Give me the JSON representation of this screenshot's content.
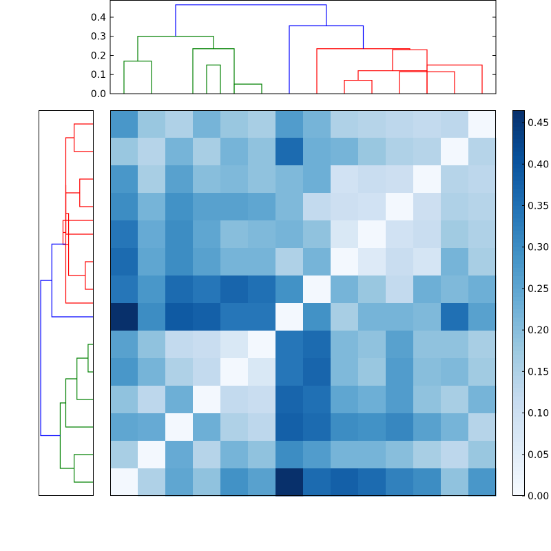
{
  "colors": {
    "cluster_a": "#ff0000",
    "cluster_b": "#008000",
    "root": "#0000ff",
    "frame": "#000000",
    "colormap": [
      "#f7fbff",
      "#deebf7",
      "#c6dbef",
      "#9ecae1",
      "#6baed6",
      "#4292c6",
      "#2171b5",
      "#08519c",
      "#08306b"
    ]
  },
  "chart_data": [
    {
      "type": "dendrogram",
      "orientation": "top",
      "ylim": [
        0,
        0.49
      ],
      "yticks": [
        "0.0",
        "0.1",
        "0.2",
        "0.3",
        "0.4"
      ],
      "ytick_values": [
        0,
        0.1,
        0.2,
        0.3,
        0.4
      ],
      "leaf_count": 14,
      "links": [
        {
          "x": [
            0,
            1
          ],
          "height": 0.17,
          "color": "cluster_b"
        },
        {
          "x": [
            4,
            5
          ],
          "height": 0.05,
          "color": "cluster_b"
        },
        {
          "x": [
            3.5,
            3
          ],
          "height": 0.15,
          "color": "cluster_b"
        },
        {
          "x": [
            2.5,
            4
          ],
          "height": 0.235,
          "color": "cluster_b"
        },
        {
          "x": [
            0.5,
            3.25
          ],
          "height": 0.3,
          "color": "cluster_b"
        },
        {
          "x": [
            8,
            9
          ],
          "height": 0.07,
          "color": "cluster_a"
        },
        {
          "x": [
            8.5,
            11
          ],
          "height": 0.12,
          "color": "cluster_a"
        },
        {
          "x": [
            10,
            12
          ],
          "height": 0.115,
          "color": "cluster_a"
        },
        {
          "x": [
            11,
            13
          ],
          "height": 0.15,
          "color": "cluster_a"
        },
        {
          "x": [
            9.75,
            11
          ],
          "height": 0.23,
          "color": "cluster_a"
        },
        {
          "x": [
            7,
            10.375
          ],
          "height": 0.235,
          "color": "cluster_a"
        },
        {
          "x": [
            6,
            8.6875
          ],
          "height": 0.355,
          "color": "root"
        },
        {
          "x": [
            1.875,
            7.34375
          ],
          "height": 0.465,
          "color": "root"
        }
      ]
    },
    {
      "type": "dendrogram",
      "orientation": "left",
      "leaf_count": 14,
      "links": [
        {
          "y": [
            0,
            1
          ],
          "height": 0.035,
          "color": "cluster_a"
        },
        {
          "y": [
            2,
            3
          ],
          "height": 0.025,
          "color": "cluster_a"
        },
        {
          "y": [
            2.5,
            4
          ],
          "height": 0.05,
          "color": "cluster_a"
        },
        {
          "y": [
            5,
            6
          ],
          "height": 0.015,
          "color": "cluster_a"
        },
        {
          "y": [
            3.25,
            5.5
          ],
          "height": 0.045,
          "color": "cluster_a"
        },
        {
          "y": [
            4.375,
            3.5
          ],
          "height": 0.055,
          "color": "cluster_a"
        },
        {
          "y": [
            0.5,
            3.9375
          ],
          "height": 0.05,
          "color": "cluster_a"
        },
        {
          "y": [
            2.21875,
            6.5
          ],
          "height": 0.05,
          "color": "cluster_a"
        },
        {
          "y": [
            8,
            9
          ],
          "height": 0.01,
          "color": "cluster_b"
        },
        {
          "y": [
            8.5,
            10
          ],
          "height": 0.03,
          "color": "cluster_b"
        },
        {
          "y": [
            9.25,
            11
          ],
          "height": 0.05,
          "color": "cluster_b"
        },
        {
          "y": [
            12,
            13
          ],
          "height": 0.035,
          "color": "cluster_b"
        },
        {
          "y": [
            10.125,
            12.5
          ],
          "height": 0.06,
          "color": "cluster_b"
        },
        {
          "y": [
            4.359375,
            7
          ],
          "height": 0.075,
          "color": "root"
        },
        {
          "y": [
            5.6796875,
            11.3125
          ],
          "height": 0.095,
          "color": "root"
        }
      ]
    },
    {
      "type": "heatmap",
      "rows": 14,
      "cols": 14,
      "vmin": 0,
      "vmax": 0.465,
      "colorbar_ticks": [
        "0.00",
        "0.05",
        "0.10",
        "0.15",
        "0.20",
        "0.25",
        "0.30",
        "0.35",
        "0.40",
        "0.45"
      ],
      "colorbar_tick_values": [
        0,
        0.05,
        0.1,
        0.15,
        0.2,
        0.25,
        0.3,
        0.35,
        0.4,
        0.45
      ],
      "values": [
        [
          0.28,
          0.18,
          0.15,
          0.22,
          0.18,
          0.16,
          0.27,
          0.22,
          0.15,
          0.14,
          0.13,
          0.12,
          0.13,
          0.01
        ],
        [
          0.18,
          0.14,
          0.22,
          0.16,
          0.22,
          0.19,
          0.36,
          0.23,
          0.22,
          0.18,
          0.15,
          0.14,
          0.01,
          0.14
        ],
        [
          0.28,
          0.16,
          0.26,
          0.2,
          0.21,
          0.19,
          0.21,
          0.23,
          0.09,
          0.11,
          0.1,
          0.01,
          0.14,
          0.13
        ],
        [
          0.3,
          0.22,
          0.29,
          0.26,
          0.26,
          0.25,
          0.21,
          0.12,
          0.1,
          0.09,
          0.01,
          0.1,
          0.15,
          0.14
        ],
        [
          0.34,
          0.24,
          0.3,
          0.25,
          0.2,
          0.21,
          0.22,
          0.19,
          0.07,
          0.01,
          0.09,
          0.11,
          0.17,
          0.15
        ],
        [
          0.36,
          0.25,
          0.3,
          0.26,
          0.22,
          0.22,
          0.15,
          0.22,
          0.01,
          0.06,
          0.11,
          0.08,
          0.22,
          0.16
        ],
        [
          0.34,
          0.28,
          0.36,
          0.34,
          0.37,
          0.35,
          0.29,
          0.01,
          0.22,
          0.18,
          0.12,
          0.23,
          0.21,
          0.23
        ],
        [
          0.465,
          0.3,
          0.39,
          0.38,
          0.34,
          0.34,
          0.01,
          0.29,
          0.16,
          0.22,
          0.22,
          0.21,
          0.35,
          0.26
        ],
        [
          0.26,
          0.19,
          0.12,
          0.11,
          0.07,
          0.01,
          0.34,
          0.36,
          0.21,
          0.19,
          0.26,
          0.19,
          0.19,
          0.16
        ],
        [
          0.28,
          0.22,
          0.15,
          0.12,
          0.01,
          0.07,
          0.34,
          0.37,
          0.21,
          0.18,
          0.27,
          0.2,
          0.21,
          0.17
        ],
        [
          0.19,
          0.13,
          0.23,
          0.01,
          0.12,
          0.11,
          0.37,
          0.35,
          0.25,
          0.23,
          0.27,
          0.19,
          0.16,
          0.22
        ],
        [
          0.25,
          0.24,
          0.01,
          0.23,
          0.15,
          0.13,
          0.38,
          0.36,
          0.3,
          0.29,
          0.31,
          0.26,
          0.22,
          0.14
        ],
        [
          0.16,
          0.01,
          0.24,
          0.14,
          0.22,
          0.19,
          0.3,
          0.27,
          0.22,
          0.22,
          0.2,
          0.16,
          0.13,
          0.18
        ],
        [
          0.01,
          0.15,
          0.25,
          0.19,
          0.29,
          0.26,
          0.465,
          0.36,
          0.38,
          0.36,
          0.32,
          0.3,
          0.19,
          0.28
        ]
      ]
    }
  ]
}
